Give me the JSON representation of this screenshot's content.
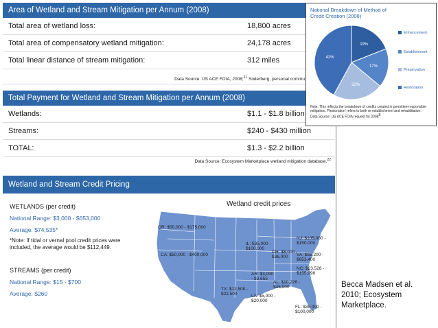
{
  "mitigation": {
    "title": "Area of Wetland and Stream Mitigation per  Annum (2008)",
    "rows": [
      {
        "label": "Total area of wetland loss:",
        "value": "18,800 acres"
      },
      {
        "label": "Total area of compensatory wetland mitigation:",
        "value": "24,178 acres"
      },
      {
        "label": "Total linear distance of stream mitigation:",
        "value": "312 miles"
      }
    ],
    "source": "Data Source: US ACE FOIA, 2008;",
    "source_sup": "21",
    "source_tail": " Soderberg, personal commu"
  },
  "payment": {
    "title": "Total Payment for Wetland and Stream Mitigation per  Annum (2008)",
    "rows": [
      {
        "label": "Wetlands:",
        "value": "$1.1 - $1.8 billion"
      },
      {
        "label": "Streams:",
        "value": "$240 - $430 million"
      },
      {
        "label": "TOTAL:",
        "value": "$1.3 - $2.2 billion"
      }
    ],
    "source": "Data Source: Ecosystem Marketplace wetland mitigation database.",
    "source_sup": "22"
  },
  "pricing": {
    "title": "Wetland and Stream Credit Pricing",
    "wetlands_heading": "WETLANDS (per credit)",
    "wetlands_range": "National Range: $3,000 - $653,000",
    "wetlands_avg": "Average: $74,535*",
    "note": "*Note: If tidal or vernal pool credit prices were included, the average would be $112,449.",
    "streams_heading": "STREAMS (per credit)",
    "streams_range": "National Range: $15 - $700",
    "streams_avg": "Average: $260",
    "map_title": "Wetland credit prices",
    "map_labels": [
      {
        "name": "or",
        "text": "OR: $50,000 - $175,000"
      },
      {
        "name": "ca",
        "text": "CA: $50,000 - $400,000"
      },
      {
        "name": "il",
        "text": "IL: $35,000 - $100,000"
      },
      {
        "name": "oh",
        "text": "OH: $8,000 - $36,000"
      },
      {
        "name": "nj",
        "text": "NJ: $105,000 - $150,000"
      },
      {
        "name": "va",
        "text": "VA: $55,200 - $653,400"
      },
      {
        "name": "nc",
        "text": "NC: $23,528 - $155,998"
      },
      {
        "name": "ar",
        "text": "AR: $3,000 - $3,655"
      },
      {
        "name": "al",
        "text": "AL: $10,226 - $45,000"
      },
      {
        "name": "tx",
        "text": "TX: $12,500 - $22,500"
      },
      {
        "name": "la",
        "text": "LA: $5,000 - $20,000"
      },
      {
        "name": "fl",
        "text": "FL: $35,000 - $100,000"
      }
    ]
  },
  "pie": {
    "title": "National Breakdown of Method of Credit Creation (2008)",
    "slices": [
      {
        "name": "Enhancement",
        "value": 19,
        "label": "19%",
        "color": "#2e5da0"
      },
      {
        "name": "Establishment",
        "value": 17,
        "label": "17%",
        "color": "#5585c9"
      },
      {
        "name": "Preservation",
        "value": 22,
        "label": "22%",
        "color": "#a7bde0"
      },
      {
        "name": "Restoration",
        "value": 42,
        "label": "42%",
        "color": "#3d6db7"
      }
    ],
    "note": "Note: This reflects the breakdown of credits created in permittee-responsible mitigation. 'Restoration' refers to both re-establishment and rehabilitation.",
    "source": "Data Source: US ACE FOIA request for 2008",
    "source_sup": "8"
  },
  "caption": "Becca Madsen et al. 2010; Ecosystem Marketplace."
}
